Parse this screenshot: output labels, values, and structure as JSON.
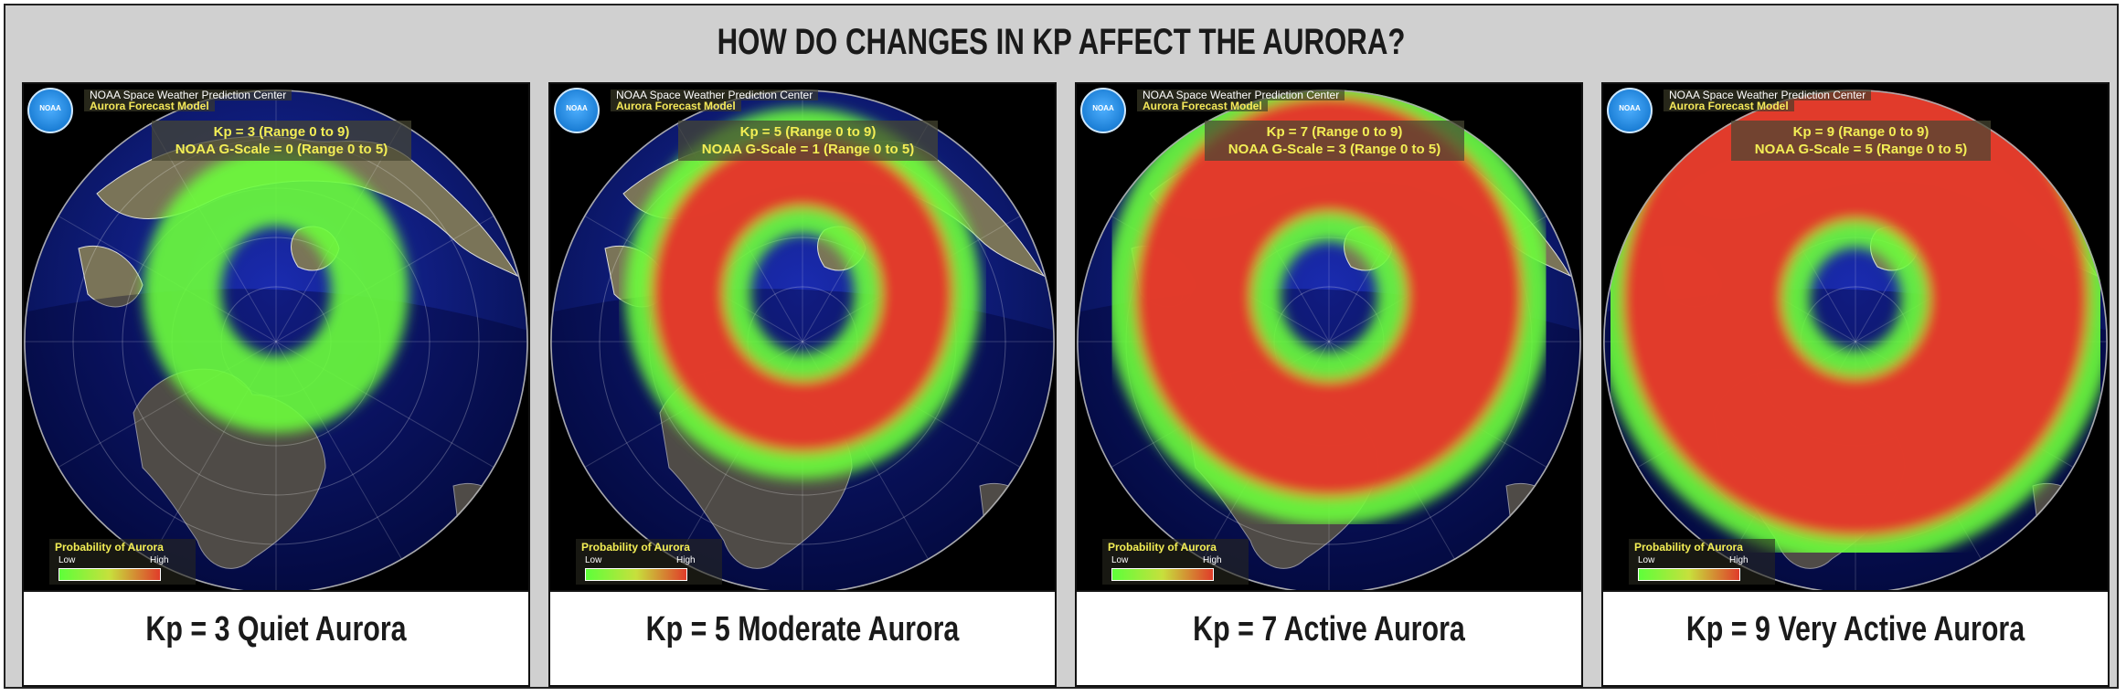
{
  "title": "HOW DO CHANGES IN KP AFFECT THE AURORA?",
  "org_line": "NOAA Space Weather Prediction Center",
  "model_line": "Aurora Forecast Model",
  "logo_text": "NOAA",
  "legend": {
    "title": "Probability of Aurora",
    "low": "Low",
    "high": "High"
  },
  "colors": {
    "ocean": "#0b1a8c",
    "land": "#7a7458",
    "aurora_green": "#6cff3c",
    "aurora_red": "#e8322a"
  },
  "panels": [
    {
      "kp_line": "Kp = 3 (Range 0 to 9)",
      "g_line": "NOAA G-Scale = 0 (Range 0 to 5)",
      "caption": "Kp = 3 Quiet Aurora",
      "activity_level": 0.15
    },
    {
      "kp_line": "Kp = 5 (Range 0 to 9)",
      "g_line": "NOAA G-Scale = 1 (Range 0 to 5)",
      "caption": "Kp = 5 Moderate Aurora",
      "activity_level": 0.45
    },
    {
      "kp_line": "Kp = 7 (Range 0 to 9)",
      "g_line": "NOAA G-Scale = 3 (Range 0 to 5)",
      "caption": "Kp = 7 Active Aurora",
      "activity_level": 0.75
    },
    {
      "kp_line": "Kp = 9 (Range 0 to 9)",
      "g_line": "NOAA G-Scale = 5 (Range 0 to 5)",
      "caption": "Kp = 9 Very Active Aurora",
      "activity_level": 1.0
    }
  ]
}
